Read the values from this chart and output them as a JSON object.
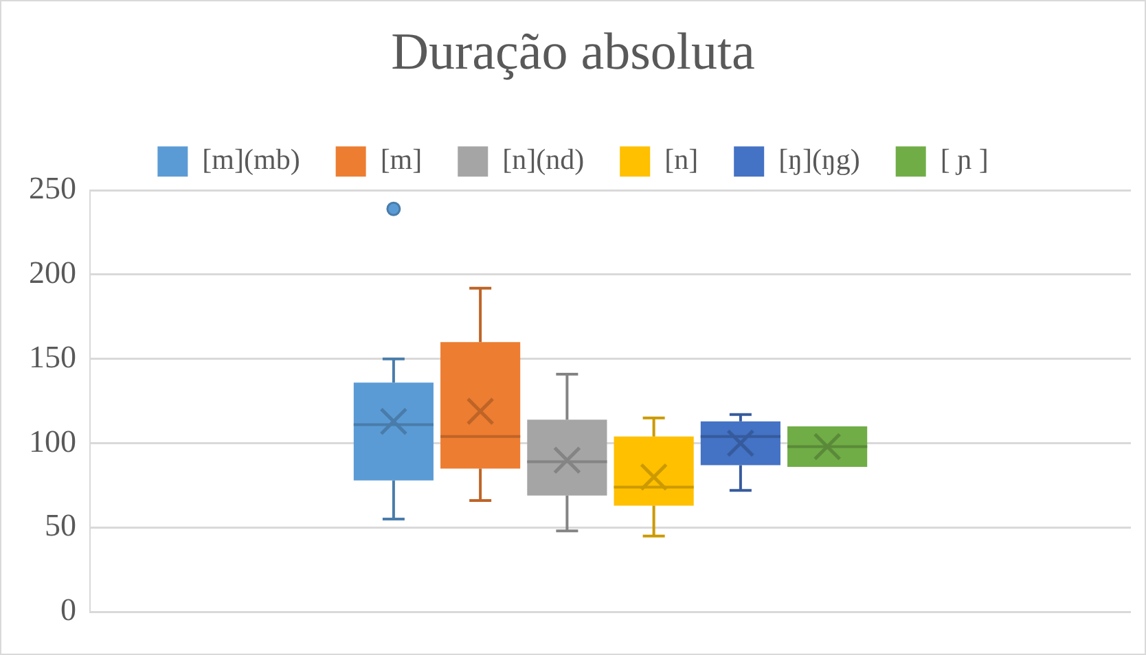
{
  "chart_data": {
    "type": "box",
    "title": "Duração absoluta",
    "categories": [
      null
    ],
    "series": [
      {
        "name": "[m](mb)",
        "color": "#5b9bd5",
        "boxes": [
          {
            "low": 55,
            "q1": 78,
            "median": 111,
            "q3": 136,
            "high": 150,
            "mean": 113,
            "outliers": [
              239
            ]
          }
        ]
      },
      {
        "name": "[m]",
        "color": "#ed7d31",
        "boxes": [
          {
            "low": 66,
            "q1": 85,
            "median": 104,
            "q3": 160,
            "high": 192,
            "mean": 119
          }
        ]
      },
      {
        "name": "[n](nd)",
        "color": "#a5a5a5",
        "boxes": [
          {
            "low": 48,
            "q1": 69,
            "median": 89,
            "q3": 114,
            "high": 141,
            "mean": 90
          }
        ]
      },
      {
        "name": "[n]",
        "color": "#ffc000",
        "boxes": [
          {
            "low": 45,
            "q1": 63,
            "median": 74,
            "q3": 104,
            "high": 115,
            "mean": 80
          }
        ]
      },
      {
        "name": "[ŋ](ŋg)",
        "color": "#4472c4",
        "boxes": [
          {
            "low": 72,
            "q1": 87,
            "median": 104,
            "q3": 113,
            "high": 117,
            "mean": 100
          }
        ]
      },
      {
        "name": "[ ɲ ]",
        "color": "#70ad47",
        "boxes": [
          {
            "low": 86,
            "q1": 86,
            "median": 98,
            "q3": 110,
            "high": 110,
            "mean": 98
          }
        ]
      }
    ],
    "ylim": [
      0,
      250
    ],
    "yticks": [
      0,
      50,
      100,
      150,
      200,
      250
    ],
    "grid": "y",
    "legend": "top"
  }
}
